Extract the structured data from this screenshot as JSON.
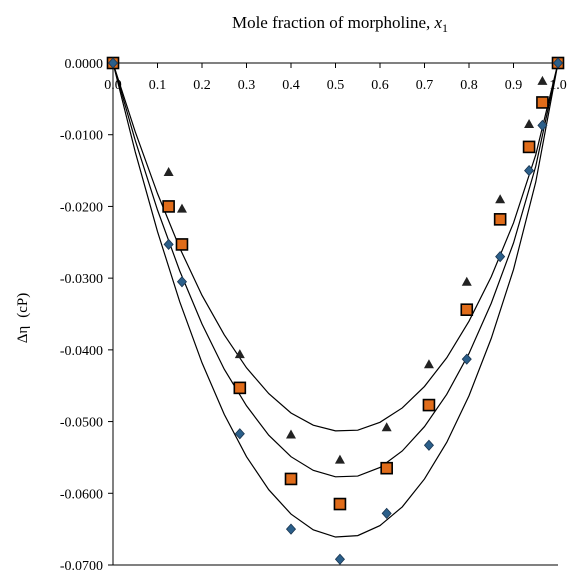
{
  "chart_data": {
    "type": "scatter",
    "title": "Mole fraction of morpholine, x1",
    "title_text": "Mole fraction of morpholine, ",
    "title_var": "x",
    "title_sub": "1",
    "xlabel": "",
    "ylabel": "Δη (cP)",
    "ylabel_main": "Δη",
    "ylabel_unit": "(cP)",
    "xlim": [
      0,
      1
    ],
    "ylim": [
      -0.07,
      0
    ],
    "x_axis_position": "top",
    "x_ticks": [
      "0.0",
      "0.1",
      "0.2",
      "0.3",
      "0.4",
      "0.5",
      "0.6",
      "0.7",
      "0.8",
      "0.9",
      "1.0"
    ],
    "y_ticks": [
      "0.0000",
      "-0.0100",
      "-0.0200",
      "-0.0300",
      "-0.0400",
      "-0.0500",
      "-0.0600",
      "-0.0700"
    ],
    "grid": false,
    "legend": "none",
    "series": [
      {
        "marker": "triangle",
        "color": "#222222",
        "points": [
          [
            0.0,
            0.0
          ],
          [
            0.125,
            -0.0152
          ],
          [
            0.155,
            -0.0203
          ],
          [
            0.285,
            -0.0406
          ],
          [
            0.4,
            -0.0518
          ],
          [
            0.51,
            -0.0553
          ],
          [
            0.615,
            -0.0508
          ],
          [
            0.71,
            -0.042
          ],
          [
            0.795,
            -0.0305
          ],
          [
            0.87,
            -0.019
          ],
          [
            0.935,
            -0.0085
          ],
          [
            0.965,
            -0.0025
          ],
          [
            1.0,
            0.0
          ]
        ],
        "fit": [
          [
            0,
            0
          ],
          [
            0.05,
            -0.0096
          ],
          [
            0.1,
            -0.0182
          ],
          [
            0.15,
            -0.0258
          ],
          [
            0.2,
            -0.0324
          ],
          [
            0.25,
            -0.0379
          ],
          [
            0.3,
            -0.0425
          ],
          [
            0.35,
            -0.0461
          ],
          [
            0.4,
            -0.0488
          ],
          [
            0.45,
            -0.0505
          ],
          [
            0.5,
            -0.0513
          ],
          [
            0.55,
            -0.0512
          ],
          [
            0.6,
            -0.0501
          ],
          [
            0.65,
            -0.0481
          ],
          [
            0.7,
            -0.0451
          ],
          [
            0.75,
            -0.0411
          ],
          [
            0.8,
            -0.036
          ],
          [
            0.85,
            -0.0298
          ],
          [
            0.9,
            -0.0223
          ],
          [
            0.95,
            -0.0128
          ],
          [
            1.0,
            0
          ]
        ]
      },
      {
        "marker": "square",
        "color": "#e06c1a",
        "points": [
          [
            0.0,
            0.0
          ],
          [
            0.125,
            -0.02
          ],
          [
            0.155,
            -0.0253
          ],
          [
            0.285,
            -0.0453
          ],
          [
            0.4,
            -0.058
          ],
          [
            0.51,
            -0.0615
          ],
          [
            0.615,
            -0.0565
          ],
          [
            0.71,
            -0.0477
          ],
          [
            0.795,
            -0.0344
          ],
          [
            0.87,
            -0.0218
          ],
          [
            0.935,
            -0.0117
          ],
          [
            0.965,
            -0.0055
          ],
          [
            1.0,
            0.0
          ]
        ],
        "fit": [
          [
            0,
            0
          ],
          [
            0.05,
            -0.0108
          ],
          [
            0.1,
            -0.0205
          ],
          [
            0.15,
            -0.029
          ],
          [
            0.2,
            -0.0364
          ],
          [
            0.25,
            -0.0427
          ],
          [
            0.3,
            -0.0478
          ],
          [
            0.35,
            -0.0519
          ],
          [
            0.4,
            -0.0549
          ],
          [
            0.45,
            -0.0568
          ],
          [
            0.5,
            -0.0577
          ],
          [
            0.55,
            -0.0576
          ],
          [
            0.6,
            -0.0564
          ],
          [
            0.65,
            -0.0541
          ],
          [
            0.7,
            -0.0507
          ],
          [
            0.75,
            -0.0462
          ],
          [
            0.8,
            -0.0405
          ],
          [
            0.85,
            -0.0335
          ],
          [
            0.9,
            -0.0251
          ],
          [
            0.95,
            -0.0144
          ],
          [
            1.0,
            0
          ]
        ]
      },
      {
        "marker": "diamond",
        "color": "#2b5f8a",
        "points": [
          [
            0.0,
            0.0
          ],
          [
            0.125,
            -0.0253
          ],
          [
            0.155,
            -0.0305
          ],
          [
            0.285,
            -0.0517
          ],
          [
            0.4,
            -0.065
          ],
          [
            0.51,
            -0.0692
          ],
          [
            0.615,
            -0.0628
          ],
          [
            0.71,
            -0.0533
          ],
          [
            0.795,
            -0.0413
          ],
          [
            0.87,
            -0.027
          ],
          [
            0.935,
            -0.015
          ],
          [
            0.965,
            -0.0087
          ],
          [
            1.0,
            0.0
          ]
        ],
        "fit": [
          [
            0,
            0
          ],
          [
            0.05,
            -0.0124
          ],
          [
            0.1,
            -0.0235
          ],
          [
            0.15,
            -0.0333
          ],
          [
            0.2,
            -0.0418
          ],
          [
            0.25,
            -0.049
          ],
          [
            0.3,
            -0.0549
          ],
          [
            0.35,
            -0.0595
          ],
          [
            0.4,
            -0.0629
          ],
          [
            0.45,
            -0.0651
          ],
          [
            0.5,
            -0.0661
          ],
          [
            0.55,
            -0.0659
          ],
          [
            0.6,
            -0.0645
          ],
          [
            0.65,
            -0.0619
          ],
          [
            0.7,
            -0.058
          ],
          [
            0.75,
            -0.0529
          ],
          [
            0.8,
            -0.0464
          ],
          [
            0.85,
            -0.0384
          ],
          [
            0.9,
            -0.0288
          ],
          [
            0.95,
            -0.0166
          ],
          [
            1.0,
            0
          ]
        ]
      }
    ]
  }
}
